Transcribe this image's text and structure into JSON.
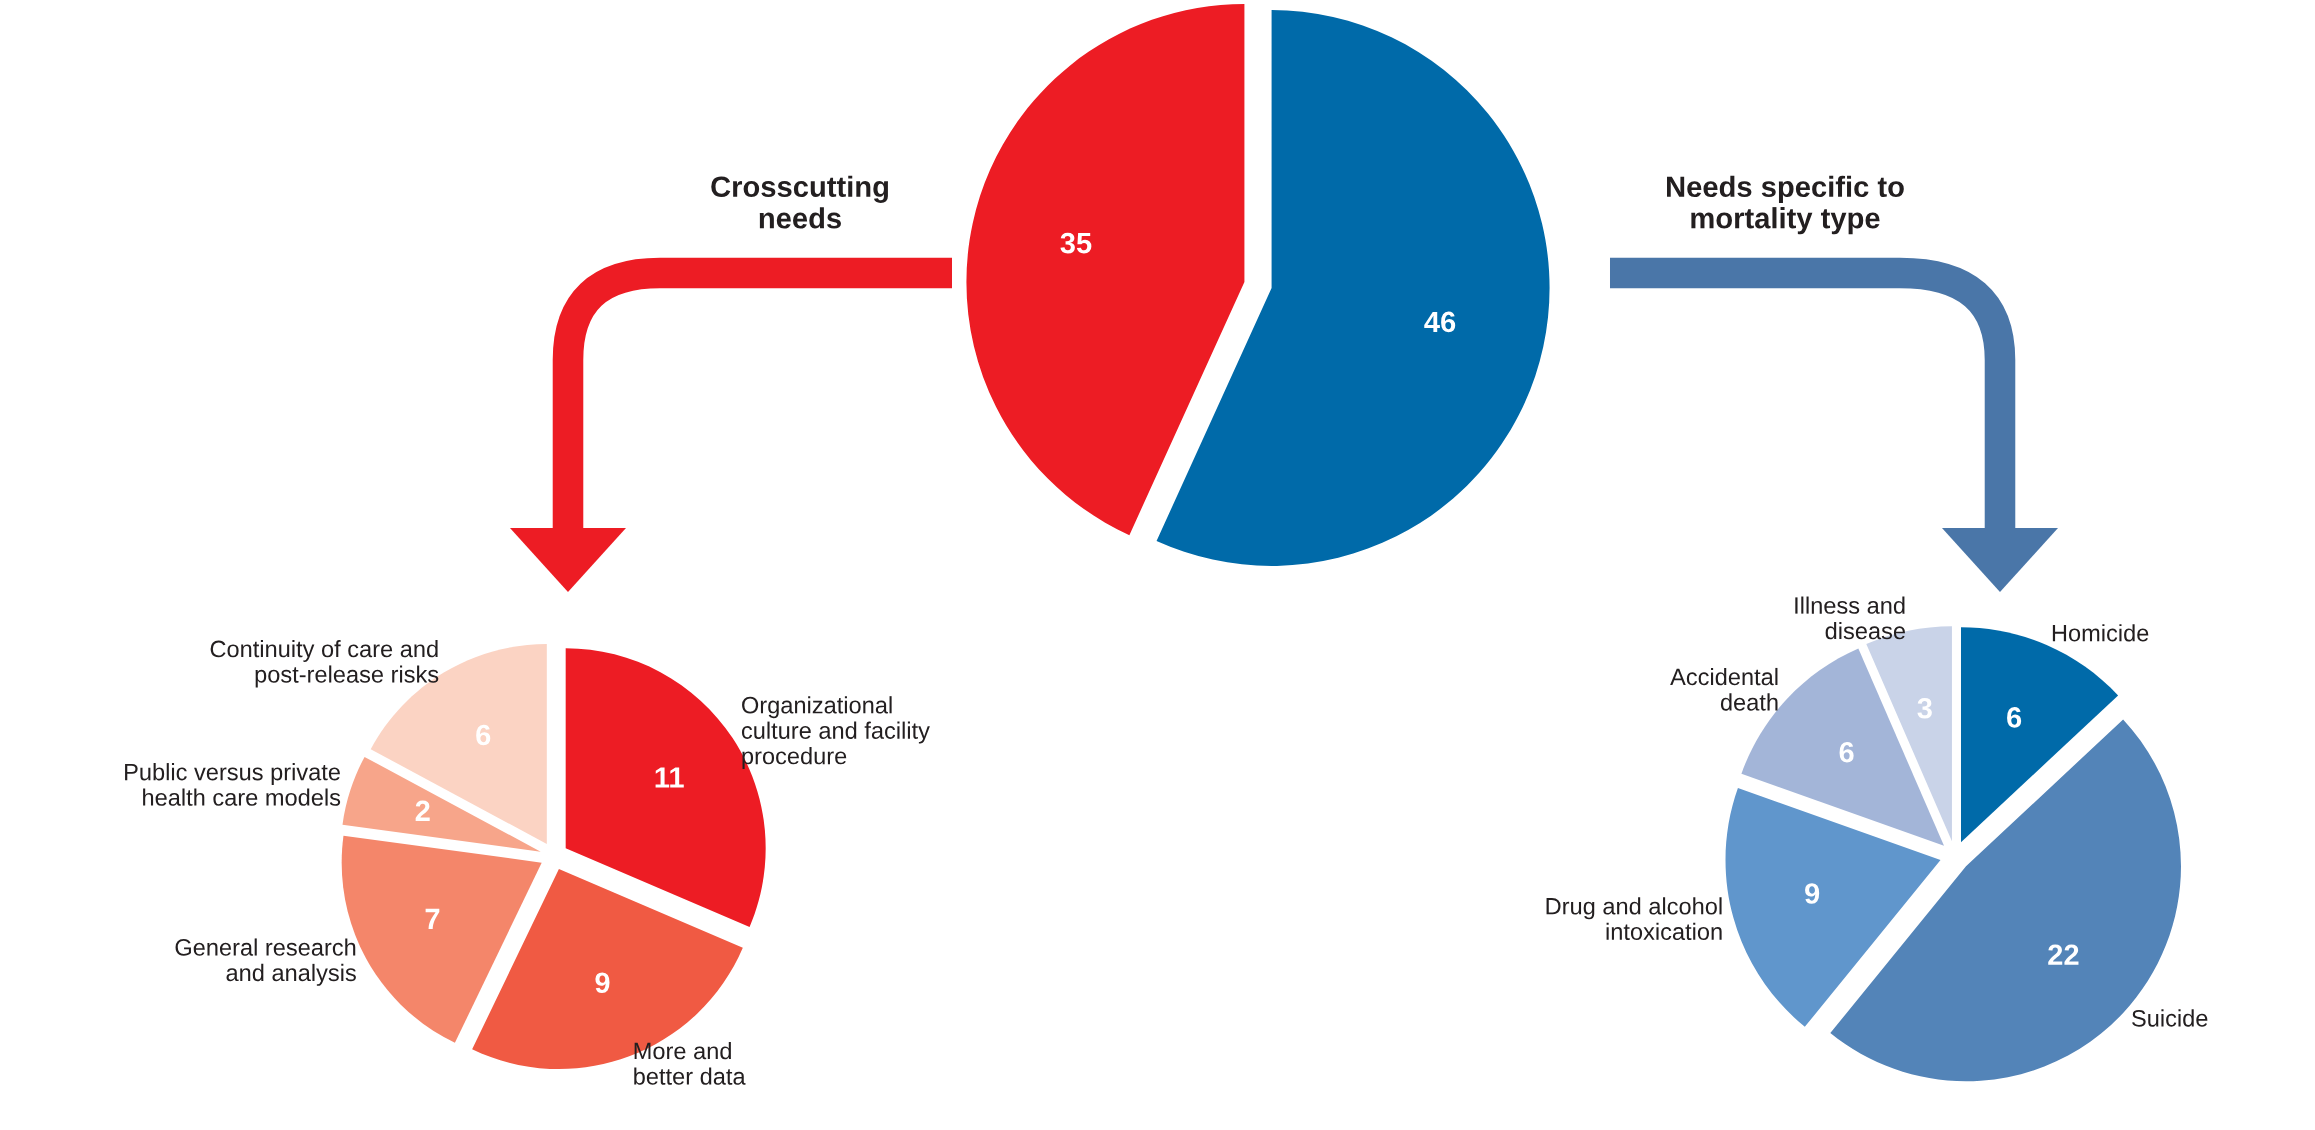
{
  "chart_data": [
    {
      "type": "pie",
      "categories": [
        "Crosscutting\nneeds",
        "Needs specific to\nmortality type"
      ],
      "values": [
        35,
        46
      ],
      "colors": [
        "#ed1c24",
        "#006aa9"
      ],
      "data_labels": true
    },
    {
      "type": "pie",
      "categories": [
        "Organizational\nculture and facility\nprocedure",
        "More and\nbetter data",
        "General research\nand analysis",
        "Public versus private\nhealth care models",
        "Continuity of care and\npost-release risks"
      ],
      "values": [
        11,
        9,
        7,
        2,
        6
      ],
      "colors": [
        "#ed1c24",
        "#f05a43",
        "#f4866a",
        "#f7a58a",
        "#fbd3c3"
      ],
      "data_labels": true
    },
    {
      "type": "pie",
      "categories": [
        "Homicide",
        "Suicide",
        "Drug and alcohol\nintoxication",
        "Accidental\ndeath",
        "Illness and\ndisease"
      ],
      "values": [
        6,
        22,
        9,
        6,
        3
      ],
      "colors": [
        "#006aa9",
        "#5384b8",
        "#6096cc",
        "#a3b5d8",
        "#c9d3e8"
      ],
      "data_labels": true
    }
  ]
}
